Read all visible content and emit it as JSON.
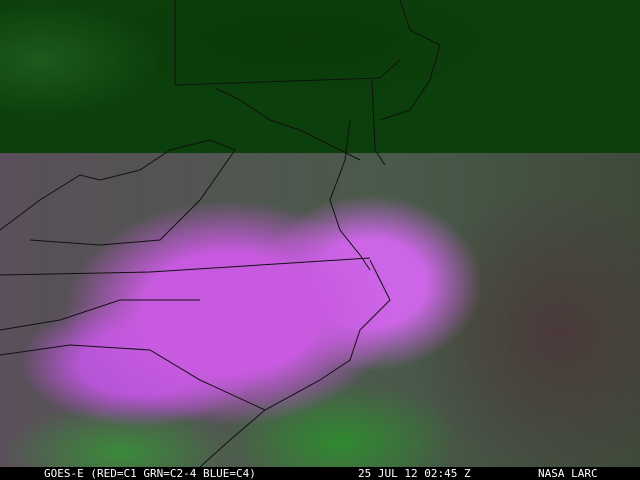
{
  "caption": {
    "satellite": "GOES-E (RED=C1 GRN=C2-4 BLUE=C4)",
    "datetime": "25 JUL 12 02:45 Z",
    "source": "NASA LARC"
  },
  "colors": {
    "cloud": "#c85ae0",
    "vegetation": "#2f8a2f",
    "top_band": "#0b3f0b"
  }
}
